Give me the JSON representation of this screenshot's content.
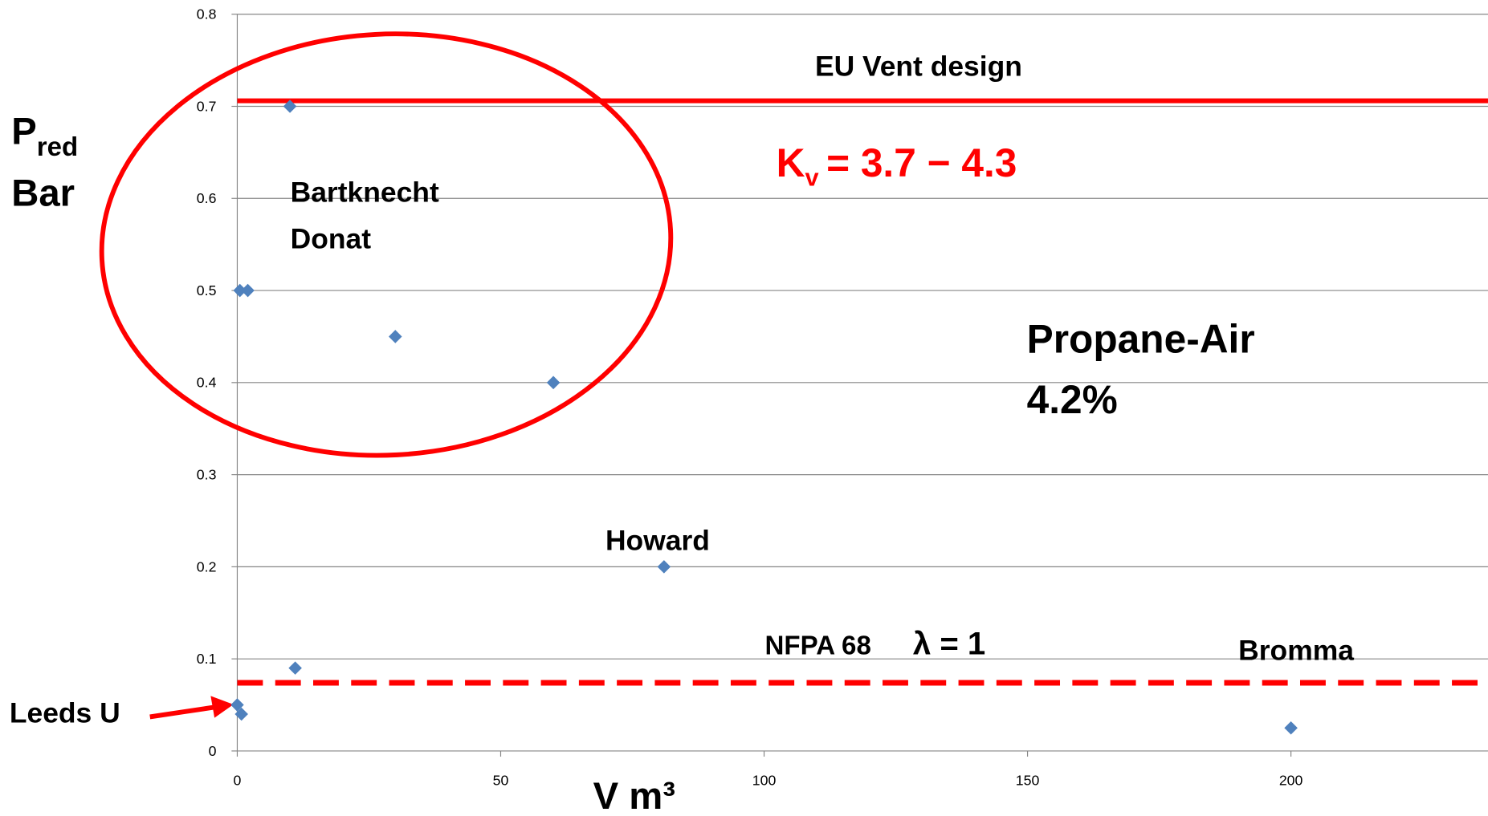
{
  "chart_data": {
    "type": "scatter",
    "x_label": "V m³",
    "y_label": {
      "main": "P",
      "sub": "red",
      "line2": "Bar"
    },
    "xlim": [
      0,
      237.4
    ],
    "ylim": [
      0,
      0.8
    ],
    "xticks": [
      0,
      50,
      100,
      150,
      200
    ],
    "yticks": [
      0,
      0.1,
      0.2,
      0.3,
      0.4,
      0.5,
      0.6,
      0.7,
      0.8
    ],
    "grid": true,
    "series": [
      {
        "color": "#4f81bd",
        "x": [
          0,
          0.8,
          10,
          0.5,
          2,
          30,
          60,
          81,
          11,
          200
        ],
        "values": [
          0.05,
          0.04,
          0.7,
          0.5,
          0.5,
          0.45,
          0.4,
          0.2,
          0.09,
          0.025
        ]
      }
    ],
    "reference_lines": [
      {
        "label": "EU Vent design",
        "value": 0.706,
        "color": "#ff0000",
        "style": "solid"
      },
      {
        "label": "NFPA 68",
        "symbol": "λ = 1",
        "value": 0.074,
        "color": "#ff0000",
        "style": "dashed"
      }
    ],
    "kv_label": {
      "main": "K",
      "sub": "v",
      "rest": "= 3.7  − 4.3"
    },
    "annotations": [
      "Bartknecht",
      "Donat",
      "Propane-Air",
      "4.2%",
      "Howard",
      "Bromma",
      "Leeds U"
    ]
  }
}
